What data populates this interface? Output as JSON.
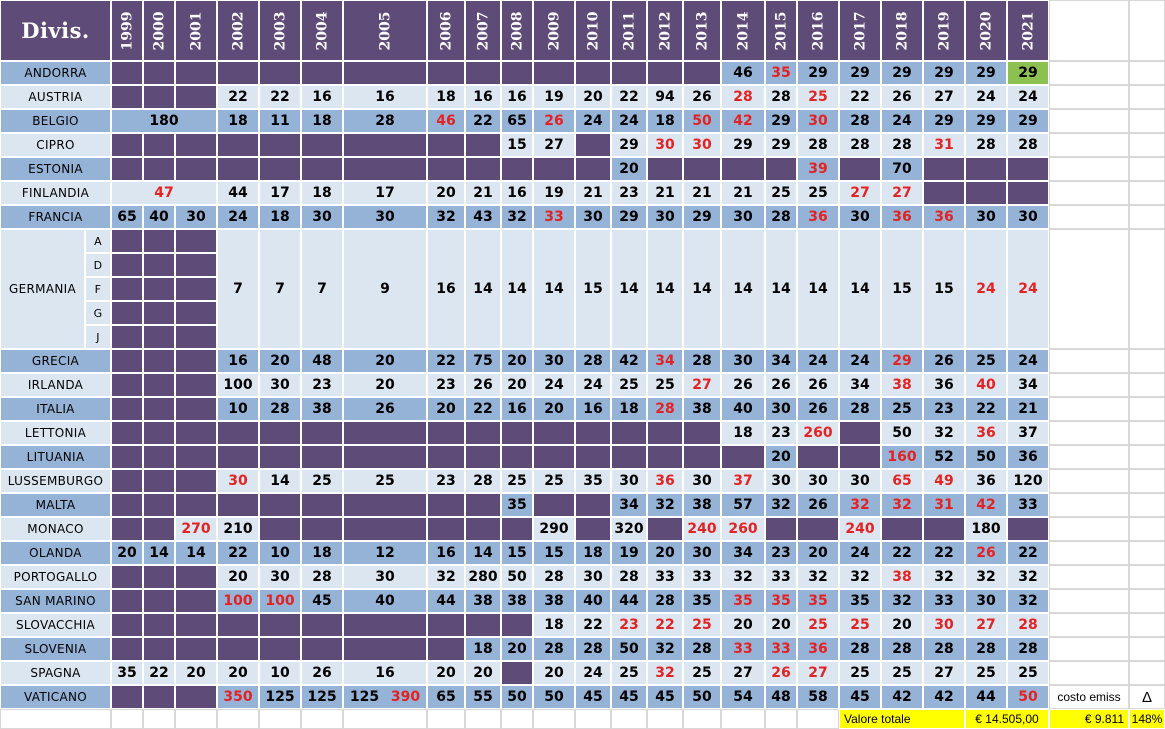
{
  "sheet": {
    "title": "Divis.",
    "years": [
      "1999",
      "2000",
      "2001",
      "2002",
      "2003",
      "2004",
      "2005",
      "2006",
      "2007",
      "2008",
      "2009",
      "2010",
      "2011",
      "2012",
      "2013",
      "2014",
      "2015",
      "2016",
      "2017",
      "2018",
      "2019",
      "2020",
      "2021"
    ],
    "subdivisions": [
      "A",
      "D",
      "F",
      "G",
      "J"
    ],
    "colors": {
      "purple": "#5f4b78",
      "blue": "#95b3d7",
      "light": "#dce6f1",
      "red": "#e32222",
      "yellow": "#ffff00",
      "green": "#8cc152"
    },
    "rows": [
      {
        "name": "ANDORRA",
        "cells": [
          "",
          "",
          "",
          "",
          "",
          "",
          "",
          "",
          "",
          "",
          "",
          "",
          "",
          "",
          "",
          "46",
          "35r",
          "29",
          "29",
          "29",
          "29",
          "29",
          "29g"
        ]
      },
      {
        "name": "AUSTRIA",
        "cells": [
          "",
          "",
          "",
          "22",
          "22",
          "16",
          "16",
          "18",
          "16",
          "16",
          "19",
          "20",
          "22",
          "94",
          "26",
          "28r",
          "28",
          "25r",
          "22",
          "26",
          "27",
          "24",
          "24"
        ]
      },
      {
        "name": "BELGIO",
        "cells": [
          "180",
          "~",
          "~",
          "18",
          "11",
          "18",
          "28",
          "46r",
          "22",
          "65",
          "26r",
          "24",
          "24",
          "18",
          "50r",
          "42r",
          "29",
          "30r",
          "28",
          "24",
          "29",
          "29",
          "29"
        ]
      },
      {
        "name": "CIPRO",
        "cells": [
          "",
          "",
          "",
          "",
          "",
          "",
          "",
          "",
          "",
          "15",
          "27",
          "",
          "29",
          "30r",
          "30r",
          "29",
          "29",
          "28",
          "28",
          "28",
          "31r",
          "28",
          "28"
        ]
      },
      {
        "name": "ESTONIA",
        "cells": [
          "",
          "",
          "",
          "",
          "",
          "",
          "",
          "",
          "",
          "",
          "",
          "",
          "20",
          "",
          "",
          "",
          "",
          "39r",
          "",
          "70",
          "",
          "",
          ""
        ]
      },
      {
        "name": "FINLANDIA",
        "cells": [
          "47r",
          "~",
          "~",
          "44",
          "17",
          "18",
          "17",
          "20",
          "21",
          "16",
          "19",
          "21",
          "23",
          "21",
          "21",
          "21",
          "25",
          "25",
          "27r",
          "27r",
          "",
          "",
          ""
        ]
      },
      {
        "name": "FRANCIA",
        "cells": [
          "65",
          "40",
          "30",
          "24",
          "18",
          "30",
          "30",
          "32",
          "43",
          "32",
          "33r",
          "30",
          "29",
          "30",
          "29",
          "30",
          "28",
          "36r",
          "30",
          "36r",
          "36r",
          "30",
          "30"
        ]
      },
      {
        "name": "GERMANIA",
        "cells": [
          "",
          "",
          "",
          "7",
          "7",
          "7",
          "9",
          "16",
          "14",
          "14",
          "14",
          "15",
          "14",
          "14",
          "14",
          "14",
          "14",
          "14",
          "14",
          "15",
          "15",
          "24r",
          "24r"
        ]
      },
      {
        "name": "GRECIA",
        "cells": [
          "",
          "",
          "",
          "16",
          "20",
          "48",
          "20",
          "22",
          "75",
          "20",
          "30",
          "28",
          "42",
          "34r",
          "28",
          "30",
          "34",
          "24",
          "24",
          "29r",
          "26",
          "25",
          "24"
        ]
      },
      {
        "name": "IRLANDA",
        "cells": [
          "",
          "",
          "",
          "100",
          "30",
          "23",
          "20",
          "23",
          "26",
          "20",
          "24",
          "24",
          "25",
          "25",
          "27r",
          "26",
          "26",
          "26",
          "34",
          "38r",
          "36",
          "40r",
          "34"
        ]
      },
      {
        "name": "ITALIA",
        "cells": [
          "",
          "",
          "",
          "10",
          "28",
          "38",
          "26",
          "20",
          "22",
          "16",
          "20",
          "16",
          "18",
          "28r",
          "38",
          "40",
          "30",
          "26",
          "28",
          "25",
          "23",
          "22",
          "21"
        ]
      },
      {
        "name": "LETTONIA",
        "cells": [
          "",
          "",
          "",
          "",
          "",
          "",
          "",
          "",
          "",
          "",
          "",
          "",
          "",
          "",
          "",
          "18",
          "23",
          "260r",
          "",
          "50",
          "32",
          "36r",
          "37"
        ]
      },
      {
        "name": "LITUANIA",
        "cells": [
          "",
          "",
          "",
          "",
          "",
          "",
          "",
          "",
          "",
          "",
          "",
          "",
          "",
          "",
          "",
          "",
          "20",
          "",
          "",
          "160r",
          "52",
          "50",
          "36"
        ]
      },
      {
        "name": "LUSSEMBURGO",
        "cells": [
          "",
          "",
          "",
          "30r",
          "14",
          "25",
          "25",
          "23",
          "28",
          "25",
          "25",
          "35",
          "30",
          "36r",
          "30",
          "37r",
          "30",
          "30",
          "30",
          "65r",
          "49r",
          "36",
          "120"
        ]
      },
      {
        "name": "MALTA",
        "cells": [
          "",
          "",
          "",
          "",
          "",
          "",
          "",
          "",
          "",
          "35",
          "",
          "",
          "34",
          "32",
          "38",
          "57",
          "32",
          "26",
          "32r",
          "32r",
          "31r",
          "42r",
          "33"
        ]
      },
      {
        "name": "MONACO",
        "cells": [
          "",
          "",
          "270r",
          "210",
          "",
          "",
          "",
          "",
          "",
          "",
          "290",
          "",
          "320",
          "",
          "240r",
          "260r",
          "",
          "",
          "240r",
          "",
          "",
          "180",
          ""
        ]
      },
      {
        "name": "OLANDA",
        "cells": [
          "20",
          "14",
          "14",
          "22",
          "10",
          "18",
          "12",
          "16",
          "14",
          "15",
          "15",
          "18",
          "19",
          "20",
          "30",
          "34",
          "23",
          "20",
          "24",
          "22",
          "22",
          "26r",
          "22"
        ]
      },
      {
        "name": "PORTOGALLO",
        "cells": [
          "",
          "",
          "",
          "20",
          "30",
          "28",
          "30",
          "32",
          "280",
          "50",
          "28",
          "30",
          "28",
          "33",
          "33",
          "32",
          "33",
          "32",
          "32",
          "38r",
          "32",
          "32",
          "32"
        ]
      },
      {
        "name": "SAN MARINO",
        "cells": [
          "",
          "",
          "",
          "100r",
          "100r",
          "45",
          "40",
          "44",
          "38",
          "38",
          "38",
          "40",
          "44",
          "28",
          "35",
          "35r",
          "35r",
          "35r",
          "35",
          "32",
          "33",
          "30",
          "32"
        ]
      },
      {
        "name": "SLOVACCHIA",
        "cells": [
          "",
          "",
          "",
          "",
          "",
          "",
          "",
          "",
          "",
          "",
          "18",
          "22",
          "23r",
          "22r",
          "25r",
          "20",
          "20",
          "25r",
          "25r",
          "20",
          "30r",
          "27r",
          "28r"
        ]
      },
      {
        "name": "SLOVENIA",
        "cells": [
          "",
          "",
          "",
          "",
          "",
          "",
          "",
          "",
          "18",
          "20",
          "28",
          "28",
          "50",
          "32",
          "28",
          "33r",
          "33r",
          "36r",
          "28",
          "28",
          "28",
          "28",
          "28"
        ]
      },
      {
        "name": "SPAGNA",
        "cells": [
          "35",
          "22",
          "20",
          "20",
          "10",
          "26",
          "16",
          "20",
          "20",
          "",
          "20",
          "24",
          "25",
          "32r",
          "25",
          "27",
          "26r",
          "27r",
          "25",
          "25",
          "27",
          "25",
          "25"
        ]
      },
      {
        "name": "VATICANO",
        "cells": [
          "",
          "",
          "",
          "350r",
          "125",
          "125",
          "125|390r",
          "65",
          "55",
          "50",
          "50",
          "45",
          "45",
          "45",
          "50",
          "54",
          "48",
          "58",
          "45",
          "42",
          "42",
          "44",
          "50r"
        ]
      }
    ],
    "footer": {
      "costo_label": "costo emiss",
      "delta": "Δ",
      "valore_label": "Valore totale",
      "valore": "€ 14.505,00",
      "costo": "€ 9.811",
      "percent": "148%"
    }
  }
}
